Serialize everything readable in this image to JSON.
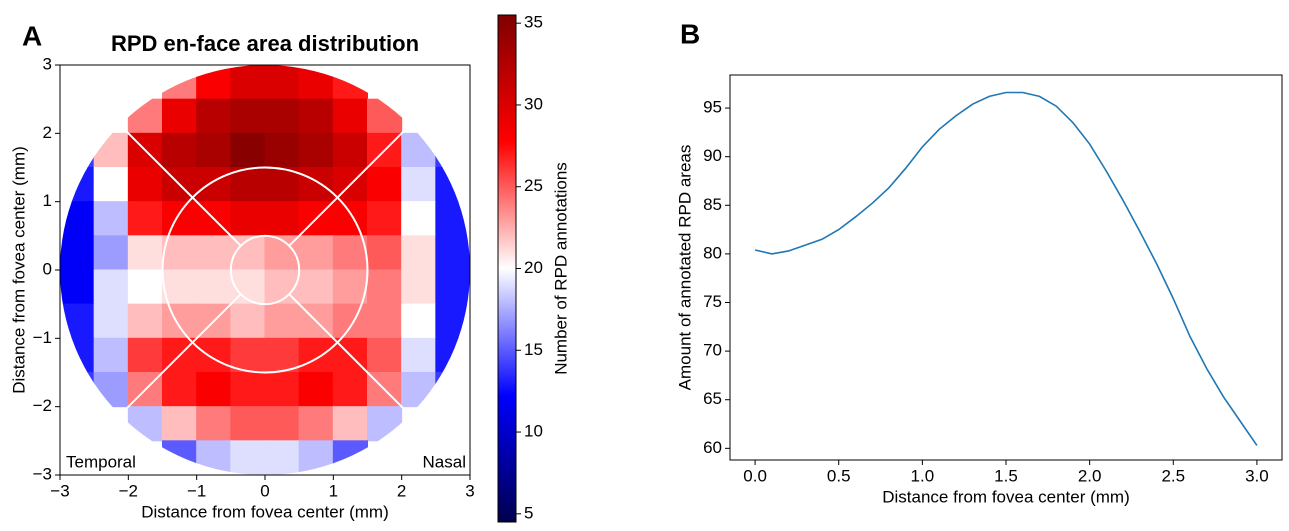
{
  "chart_data": [
    {
      "type": "heatmap",
      "panel": "A",
      "title": "RPD en-face area distribution",
      "xlabel": "Distance from fovea center (mm)",
      "ylabel": "Distance from fovea center (mm)",
      "xlim": [
        -3,
        3
      ],
      "ylim": [
        -3,
        3
      ],
      "xticks": [
        {
          "value": -3,
          "label": "−3"
        },
        {
          "value": -2,
          "label": "−2"
        },
        {
          "value": -1,
          "label": "−1"
        },
        0,
        1,
        2,
        3
      ],
      "yticks": [
        {
          "value": -3,
          "label": "−3"
        },
        {
          "value": -2,
          "label": "−2"
        },
        {
          "value": -1,
          "label": "−1"
        },
        0,
        1,
        2,
        3
      ],
      "x": [
        -2.75,
        -2.25,
        -1.75,
        -1.25,
        -0.75,
        -0.25,
        0.25,
        0.75,
        1.25,
        1.75,
        2.25,
        2.75
      ],
      "y": [
        2.75,
        2.25,
        1.75,
        1.25,
        0.75,
        0.25,
        -0.25,
        -0.75,
        -1.25,
        -1.75,
        -2.25,
        -2.75
      ],
      "z": [
        [
          null,
          null,
          null,
          24,
          28,
          30,
          30,
          29,
          27,
          null,
          null,
          null
        ],
        [
          null,
          null,
          24,
          29,
          32,
          33,
          33,
          32,
          29,
          25,
          null,
          null
        ],
        [
          14,
          22,
          30,
          32,
          33,
          35,
          34,
          33,
          31,
          27,
          18,
          14
        ],
        [
          13,
          20,
          29,
          31,
          31,
          32,
          32,
          31,
          30,
          28,
          19,
          13
        ],
        [
          12,
          18,
          27,
          28,
          28,
          29,
          29,
          28,
          28,
          27,
          20,
          13
        ],
        [
          12,
          17,
          21,
          22,
          22,
          22,
          23,
          23,
          24,
          25,
          21,
          13
        ],
        [
          12,
          19,
          20,
          21,
          21,
          21,
          22,
          22,
          23,
          24,
          21,
          13
        ],
        [
          13,
          19,
          22,
          23,
          23,
          22,
          23,
          23,
          24,
          24,
          20,
          13
        ],
        [
          13,
          18,
          26,
          27,
          27,
          26,
          26,
          27,
          27,
          25,
          19,
          13
        ],
        [
          14,
          17,
          24,
          27,
          28,
          27,
          27,
          28,
          27,
          24,
          18,
          14
        ],
        [
          null,
          null,
          18,
          22,
          24,
          25,
          25,
          24,
          22,
          18,
          null,
          null
        ],
        [
          null,
          null,
          null,
          15,
          18,
          19,
          19,
          18,
          15,
          null,
          null,
          null
        ]
      ],
      "colormap": "seismic",
      "clim": [
        4.5,
        35.5
      ],
      "cticks": [
        5,
        10,
        15,
        20,
        25,
        30,
        35
      ],
      "clabel": "Number of RPD annotations",
      "overlay_radii": [
        0.5,
        1.5,
        3
      ],
      "annotations": [
        "Temporal",
        "Nasal"
      ]
    },
    {
      "type": "line",
      "panel": "B",
      "xlabel": "Distance from fovea center (mm)",
      "ylabel": "Amount of annotated RPD areas",
      "xlim": [
        -0.15,
        3.15
      ],
      "ylim": [
        58.8,
        98.4
      ],
      "xticks": [
        {
          "value": 0,
          "label": "0.0"
        },
        0.5,
        {
          "value": 1,
          "label": "1.0"
        },
        1.5,
        {
          "value": 2,
          "label": "2.0"
        },
        2.5,
        {
          "value": 3,
          "label": "3.0"
        }
      ],
      "yticks": [
        60,
        65,
        70,
        75,
        80,
        85,
        90,
        95
      ],
      "x": [
        0,
        0.1,
        0.2,
        0.3,
        0.4,
        0.5,
        0.6,
        0.7,
        0.8,
        0.9,
        1.0,
        1.1,
        1.2,
        1.3,
        1.4,
        1.5,
        1.6,
        1.7,
        1.8,
        1.9,
        2.0,
        2.1,
        2.2,
        2.3,
        2.4,
        2.5,
        2.6,
        2.7,
        2.8,
        2.9,
        3.0
      ],
      "series": [
        {
          "color": "#1f77b4",
          "values": [
            80.4,
            80.0,
            80.3,
            80.9,
            81.5,
            82.5,
            83.8,
            85.2,
            86.8,
            88.8,
            91.0,
            92.8,
            94.2,
            95.4,
            96.2,
            96.6,
            96.6,
            96.2,
            95.2,
            93.5,
            91.3,
            88.5,
            85.5,
            82.3,
            79.0,
            75.4,
            71.5,
            68.2,
            65.3,
            62.8,
            60.3
          ]
        }
      ]
    }
  ]
}
